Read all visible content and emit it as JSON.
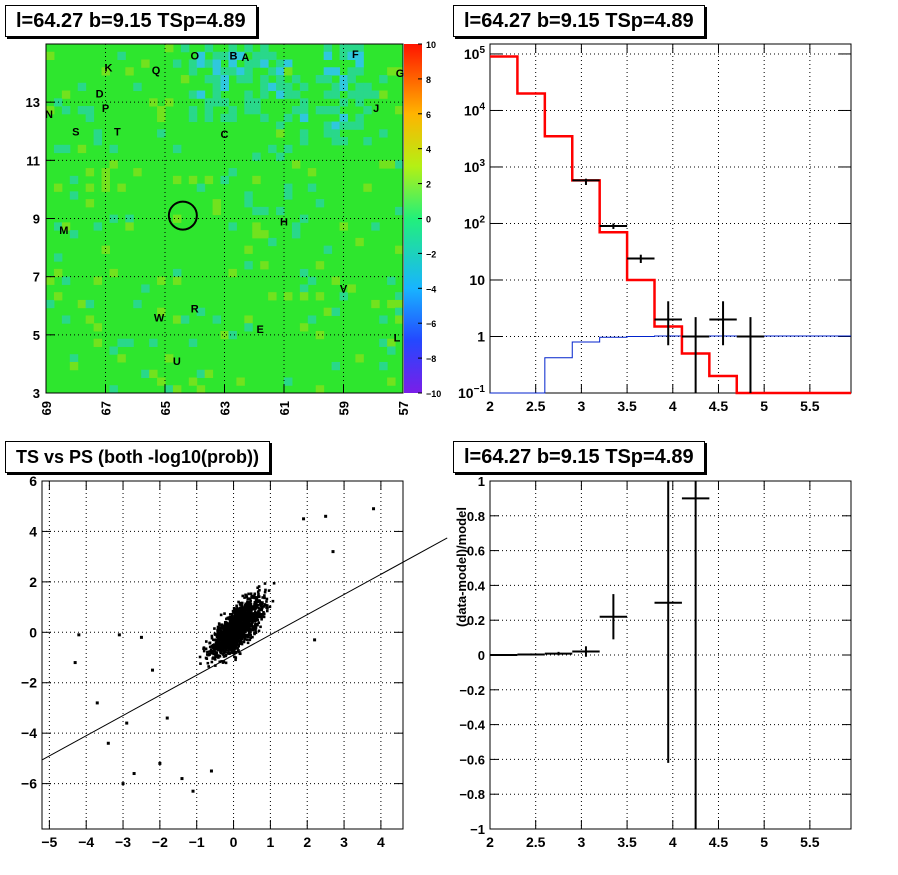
{
  "panels": {
    "tl": {
      "title": "l=64.27 b=9.15 TSp=4.89"
    },
    "tr": {
      "title": "l=64.27 b=9.15 TSp=4.89"
    },
    "bl": {
      "title": "TS vs PS (both -log10(prob))"
    },
    "br": {
      "title": "l=64.27 b=9.15 TSp=4.89"
    }
  },
  "colors": {
    "map_base": "#2ee62e",
    "model": "#ff0000",
    "blue": "#0022cc",
    "data": "#000000"
  },
  "chart_data": [
    {
      "id": "tl",
      "type": "heatmap",
      "title": "l=64.27 b=9.15 TSp=4.89",
      "xlim": [
        69,
        57
      ],
      "ylim": [
        3,
        15
      ],
      "xticks": [
        69,
        67,
        65,
        63,
        61,
        59,
        57
      ],
      "yticks": [
        3,
        5,
        7,
        9,
        11,
        13
      ],
      "colorbar": {
        "range": [
          -10,
          10
        ],
        "ticks": [
          -10,
          -8,
          -6,
          -4,
          -2,
          0,
          2,
          4,
          6,
          8,
          10
        ]
      },
      "circle": {
        "x": 64.4,
        "y": 9.1
      },
      "labels": [
        {
          "t": "O",
          "x": 64.0,
          "y": 14.6
        },
        {
          "t": "B",
          "x": 62.7,
          "y": 14.6
        },
        {
          "t": "A",
          "x": 62.3,
          "y": 14.55
        },
        {
          "t": "F",
          "x": 58.6,
          "y": 14.65
        },
        {
          "t": "K",
          "x": 66.9,
          "y": 14.2
        },
        {
          "t": "Q",
          "x": 65.3,
          "y": 14.1
        },
        {
          "t": "G",
          "x": 57.1,
          "y": 14.0
        },
        {
          "t": "D",
          "x": 67.2,
          "y": 13.3
        },
        {
          "t": "N",
          "x": 68.9,
          "y": 12.6
        },
        {
          "t": "P",
          "x": 67.0,
          "y": 12.8
        },
        {
          "t": "J",
          "x": 57.9,
          "y": 12.8
        },
        {
          "t": "S",
          "x": 68.0,
          "y": 12.0
        },
        {
          "t": "T",
          "x": 66.6,
          "y": 12.0
        },
        {
          "t": "C",
          "x": 63.0,
          "y": 11.9
        },
        {
          "t": "M",
          "x": 68.4,
          "y": 8.6
        },
        {
          "t": "H",
          "x": 61.0,
          "y": 8.9
        },
        {
          "t": "V",
          "x": 59.0,
          "y": 6.6
        },
        {
          "t": "R",
          "x": 64.0,
          "y": 5.9
        },
        {
          "t": "W",
          "x": 65.2,
          "y": 5.6
        },
        {
          "t": "E",
          "x": 61.8,
          "y": 5.2
        },
        {
          "t": "L",
          "x": 57.2,
          "y": 4.9
        },
        {
          "t": "U",
          "x": 64.6,
          "y": 4.1
        }
      ]
    },
    {
      "id": "tr",
      "type": "line",
      "title": "l=64.27 b=9.15 TSp=4.89",
      "xlim": [
        2,
        5.95
      ],
      "ylim": [
        0.1,
        150000
      ],
      "yscale": "log",
      "xticks": [
        2,
        2.5,
        3,
        3.5,
        4,
        4.5,
        5,
        5.5
      ],
      "yticks": [
        {
          "v": 0.1,
          "l": "10^-1"
        },
        {
          "v": 1,
          "l": "1"
        },
        {
          "v": 10,
          "l": "10"
        },
        {
          "v": 100,
          "l": "10^2"
        },
        {
          "v": 1000,
          "l": "10^3"
        },
        {
          "v": 10000,
          "l": "10^4"
        },
        {
          "v": 100000,
          "l": "10^5"
        }
      ],
      "model": {
        "edges": [
          2,
          2.3,
          2.6,
          2.9,
          3.2,
          3.5,
          3.8,
          4.1,
          4.4,
          4.7,
          5.95
        ],
        "values": [
          90000,
          20000,
          3500,
          580,
          70,
          10,
          1.5,
          0.5,
          0.2,
          0.1
        ]
      },
      "blue": {
        "edges": [
          2,
          2.3,
          2.6,
          2.9,
          3.2,
          3.5,
          3.8,
          4.1,
          4.4,
          4.7,
          5.95
        ],
        "values": [
          0.1,
          0.1,
          0.42,
          0.8,
          0.97,
          1.0,
          1.02,
          1.02,
          1.02,
          1.02
        ]
      },
      "points": [
        {
          "x": 3.05,
          "y": 580,
          "xe": 0.15,
          "lo": 480,
          "hi": 620
        },
        {
          "x": 3.35,
          "y": 90,
          "xe": 0.15,
          "lo": 80,
          "hi": 100
        },
        {
          "x": 3.65,
          "y": 24,
          "xe": 0.15,
          "lo": 20,
          "hi": 28
        },
        {
          "x": 3.95,
          "y": 2.0,
          "xe": 0.15,
          "lo": 0.7,
          "hi": 4.2
        },
        {
          "x": 4.25,
          "y": 1.0,
          "xe": 0.15,
          "lo": 0.1,
          "hi": 2.2
        },
        {
          "x": 4.55,
          "y": 2.0,
          "xe": 0.15,
          "lo": 0.7,
          "hi": 4.2
        },
        {
          "x": 4.85,
          "y": 1.0,
          "xe": 0.15,
          "lo": 0.1,
          "hi": 2.2
        }
      ]
    },
    {
      "id": "bl",
      "type": "scatter",
      "title": "TS vs PS (both -log10(prob))",
      "xlim": [
        -5.2,
        4.6
      ],
      "ylim": [
        -7.8,
        6
      ],
      "xticks": [
        -5,
        -4,
        -3,
        -2,
        -1,
        0,
        1,
        2,
        3,
        4
      ],
      "yticks": [
        -6,
        -4,
        -2,
        0,
        2,
        4,
        6
      ],
      "fit_line": {
        "slope": 0.8,
        "intercept": -0.9
      },
      "outliers": [
        [
          3.8,
          4.9
        ],
        [
          2.5,
          4.6
        ],
        [
          1.9,
          4.5
        ],
        [
          2.7,
          3.2
        ],
        [
          -4.3,
          -1.2
        ],
        [
          -4.2,
          -0.1
        ],
        [
          -3.1,
          -0.1
        ],
        [
          -2.5,
          -0.2
        ],
        [
          -3.0,
          -6.0
        ],
        [
          -2.7,
          -5.6
        ],
        [
          -1.1,
          -6.3
        ],
        [
          -0.6,
          -5.5
        ],
        [
          -2.0,
          -5.2
        ],
        [
          -1.4,
          -5.8
        ],
        [
          -3.7,
          -2.8
        ],
        [
          -2.2,
          -1.5
        ],
        [
          -2.9,
          -3.6
        ],
        [
          -3.4,
          -4.4
        ],
        [
          2.2,
          -0.3
        ],
        [
          -1.8,
          -3.4
        ]
      ]
    },
    {
      "id": "br",
      "type": "scatter",
      "title": "l=64.27 b=9.15 TSp=4.89",
      "xlim": [
        2,
        5.95
      ],
      "ylim": [
        -1,
        1
      ],
      "ylabel": "(data-model)/model",
      "xticks": [
        2,
        2.5,
        3,
        3.5,
        4,
        4.5,
        5,
        5.5
      ],
      "yticks": [
        -1,
        -0.8,
        -0.6,
        -0.4,
        -0.2,
        0,
        0.2,
        0.4,
        0.6,
        0.8,
        1
      ],
      "points": [
        {
          "x": 2.15,
          "y": 0.0,
          "xe": 0.15,
          "ye": 0.005
        },
        {
          "x": 2.45,
          "y": 0.003,
          "xe": 0.15,
          "ye": 0.006
        },
        {
          "x": 2.75,
          "y": 0.008,
          "xe": 0.15,
          "ye": 0.01
        },
        {
          "x": 3.05,
          "y": 0.02,
          "xe": 0.15,
          "ye": 0.03
        },
        {
          "x": 3.35,
          "y": 0.22,
          "xe": 0.15,
          "ye": 0.13
        },
        {
          "x": 3.95,
          "y": 0.3,
          "xe": 0.15,
          "ye": 0.92
        },
        {
          "x": 4.25,
          "y": 0.9,
          "xe": 0.15,
          "ye": 2.0
        }
      ]
    }
  ]
}
